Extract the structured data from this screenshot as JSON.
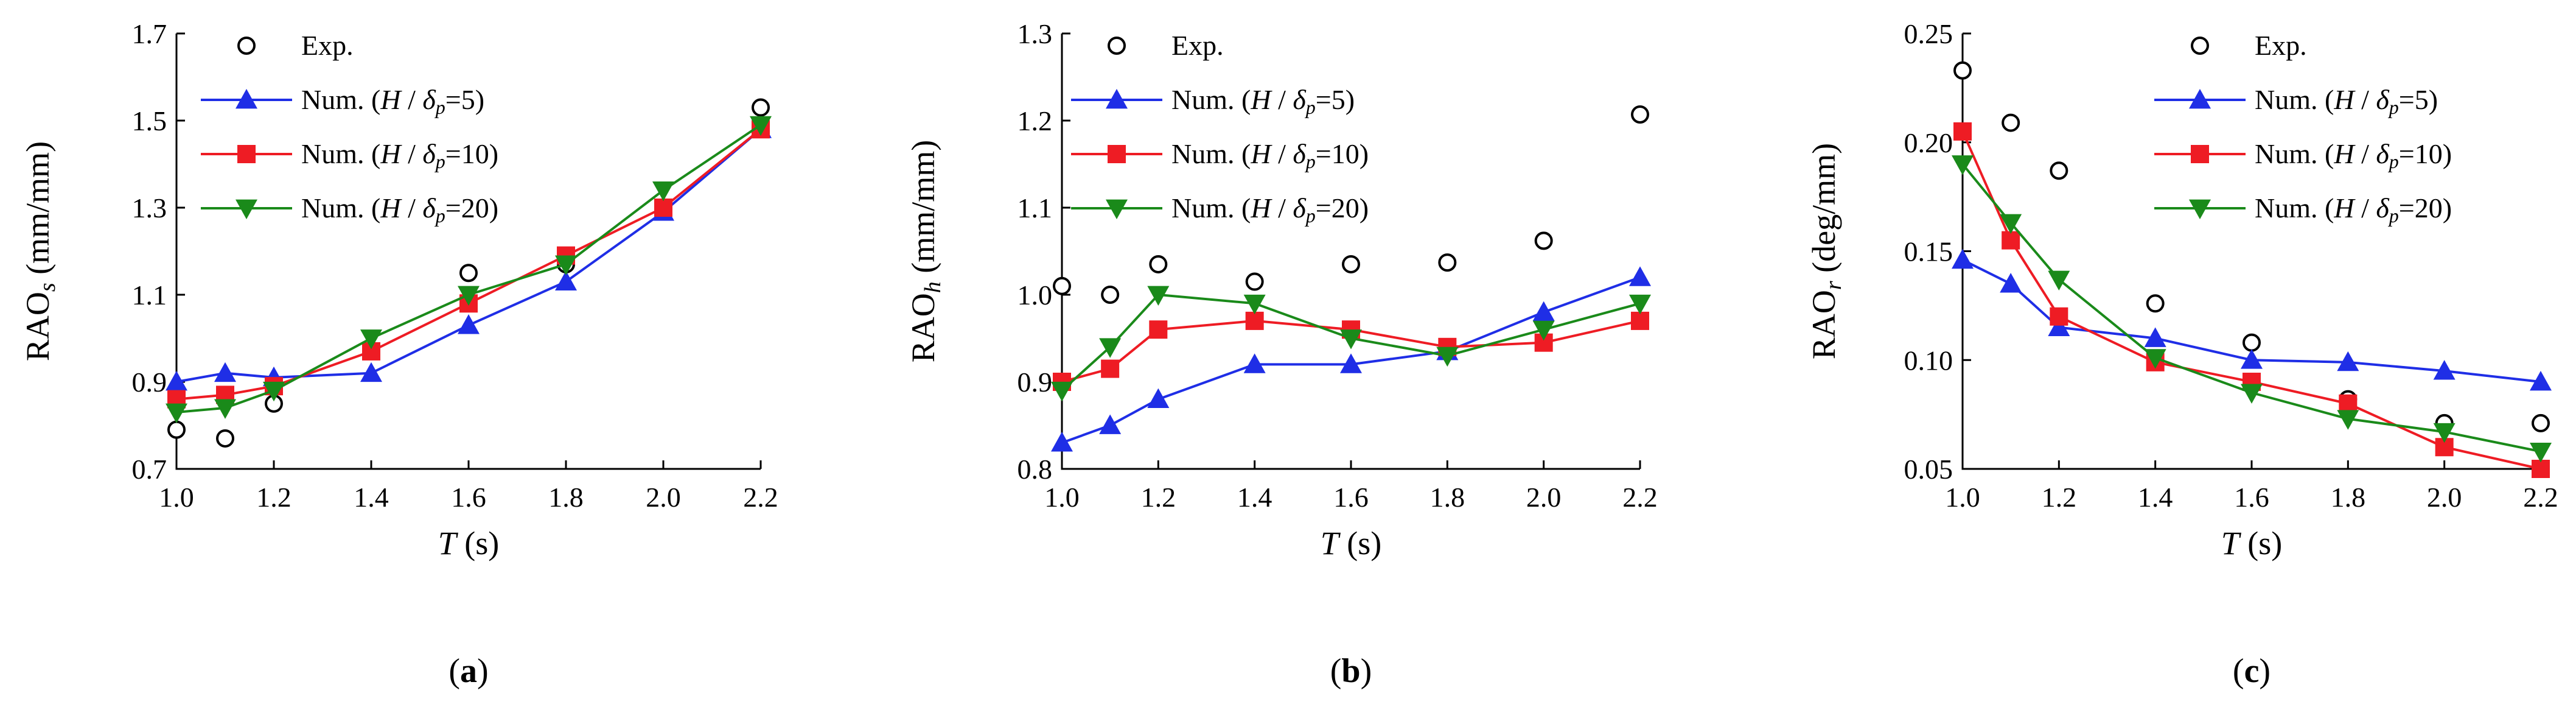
{
  "figure": {
    "panel_labels": [
      "(a)",
      "(b)",
      "(c)"
    ],
    "legend": {
      "exp": "Exp.",
      "num": "Num. (",
      "H": "H",
      "slash": " / ",
      "delta": "δ",
      "p": "p",
      "close": ")",
      "values": [
        "5",
        "10",
        "20"
      ]
    },
    "colors": {
      "blue": "#1f2ee6",
      "red": "#ee1c24",
      "green": "#1a8a1a",
      "exp": "#000000"
    }
  },
  "chart_data": [
    {
      "type": "line",
      "ylabel_main": "RAO",
      "ylabel_sub": "s",
      "ylabel_unit": " (mm/mm)",
      "xlabel_var": "T",
      "xlabel_unit": " (s)",
      "xlim": [
        1.0,
        2.2
      ],
      "ylim": [
        0.7,
        1.7
      ],
      "xticks": [
        "1.0",
        "1.2",
        "1.4",
        "1.6",
        "1.8",
        "2.0",
        "2.2"
      ],
      "yticks": [
        "0.7",
        "0.9",
        "1.1",
        "1.3",
        "1.5",
        "1.7"
      ],
      "series": [
        {
          "name": "Exp.",
          "marker": "circle",
          "x": [
            1.0,
            1.1,
            1.2,
            1.6,
            1.8,
            2.2
          ],
          "values": [
            0.79,
            0.77,
            0.85,
            1.15,
            1.17,
            1.53
          ]
        },
        {
          "name": "Num. (H/δp=5)",
          "marker": "triangle-up",
          "x": [
            1.0,
            1.1,
            1.2,
            1.4,
            1.6,
            1.8,
            2.0,
            2.2
          ],
          "values": [
            0.9,
            0.92,
            0.91,
            0.92,
            1.03,
            1.13,
            1.29,
            1.48
          ]
        },
        {
          "name": "Num. (H/δp=10)",
          "marker": "square",
          "x": [
            1.0,
            1.1,
            1.2,
            1.4,
            1.6,
            1.8,
            2.0,
            2.2
          ],
          "values": [
            0.86,
            0.87,
            0.89,
            0.97,
            1.08,
            1.19,
            1.3,
            1.48
          ]
        },
        {
          "name": "Num. (H/δp=20)",
          "marker": "triangle-down",
          "x": [
            1.0,
            1.1,
            1.2,
            1.4,
            1.6,
            1.8,
            2.0,
            2.2
          ],
          "values": [
            0.83,
            0.84,
            0.88,
            1.0,
            1.1,
            1.17,
            1.34,
            1.49
          ]
        }
      ]
    },
    {
      "type": "line",
      "ylabel_main": "RAO",
      "ylabel_sub": "h",
      "ylabel_unit": " (mm/mm)",
      "xlabel_var": "T",
      "xlabel_unit": " (s)",
      "xlim": [
        1.0,
        2.2
      ],
      "ylim": [
        0.8,
        1.3
      ],
      "xticks": [
        "1.0",
        "1.2",
        "1.4",
        "1.6",
        "1.8",
        "2.0",
        "2.2"
      ],
      "yticks": [
        "0.8",
        "0.9",
        "1.0",
        "1.1",
        "1.2",
        "1.3"
      ],
      "series": [
        {
          "name": "Exp.",
          "marker": "circle",
          "x": [
            1.0,
            1.1,
            1.2,
            1.4,
            1.6,
            1.8,
            2.0,
            2.2
          ],
          "values": [
            1.01,
            1.0,
            1.035,
            1.015,
            1.035,
            1.037,
            1.062,
            1.207
          ]
        },
        {
          "name": "Num. (H/δp=5)",
          "marker": "triangle-up",
          "x": [
            1.0,
            1.1,
            1.2,
            1.4,
            1.6,
            1.8,
            2.0,
            2.2
          ],
          "values": [
            0.83,
            0.85,
            0.88,
            0.92,
            0.92,
            0.935,
            0.98,
            1.02
          ]
        },
        {
          "name": "Num. (H/δp=10)",
          "marker": "square",
          "x": [
            1.0,
            1.1,
            1.2,
            1.4,
            1.6,
            1.8,
            2.0,
            2.2
          ],
          "values": [
            0.9,
            0.915,
            0.96,
            0.97,
            0.96,
            0.94,
            0.945,
            0.97
          ]
        },
        {
          "name": "Num. (H/δp=20)",
          "marker": "triangle-down",
          "x": [
            1.0,
            1.1,
            1.2,
            1.4,
            1.6,
            1.8,
            2.0,
            2.2
          ],
          "values": [
            0.89,
            0.94,
            1.0,
            0.99,
            0.95,
            0.93,
            0.96,
            0.99
          ]
        }
      ]
    },
    {
      "type": "line",
      "ylabel_main": "RAO",
      "ylabel_sub": "r",
      "ylabel_unit": " (deg/mm)",
      "xlabel_var": "T",
      "xlabel_unit": " (s)",
      "xlim": [
        1.0,
        2.2
      ],
      "ylim": [
        0.05,
        0.25
      ],
      "xticks": [
        "1.0",
        "1.2",
        "1.4",
        "1.6",
        "1.8",
        "2.0",
        "2.2"
      ],
      "yticks": [
        "0.05",
        "0.10",
        "0.15",
        "0.20",
        "0.25"
      ],
      "series": [
        {
          "name": "Exp.",
          "marker": "circle",
          "x": [
            1.0,
            1.1,
            1.2,
            1.4,
            1.6,
            1.8,
            2.0,
            2.2
          ],
          "values": [
            0.233,
            0.209,
            0.187,
            0.126,
            0.108,
            0.082,
            0.071,
            0.071
          ]
        },
        {
          "name": "Num. (H/δp=5)",
          "marker": "triangle-up",
          "x": [
            1.0,
            1.1,
            1.2,
            1.4,
            1.6,
            1.8,
            2.0,
            2.2
          ],
          "values": [
            0.146,
            0.135,
            0.115,
            0.11,
            0.1,
            0.099,
            0.095,
            0.09
          ]
        },
        {
          "name": "Num. (H/δp=10)",
          "marker": "square",
          "x": [
            1.0,
            1.1,
            1.2,
            1.4,
            1.6,
            1.8,
            2.0,
            2.2
          ],
          "values": [
            0.205,
            0.155,
            0.12,
            0.099,
            0.09,
            0.08,
            0.06,
            0.05
          ]
        },
        {
          "name": "Num. (H/δp=20)",
          "marker": "triangle-down",
          "x": [
            1.0,
            1.1,
            1.2,
            1.4,
            1.6,
            1.8,
            2.0,
            2.2
          ],
          "values": [
            0.19,
            0.163,
            0.137,
            0.101,
            0.085,
            0.073,
            0.067,
            0.058
          ]
        }
      ]
    }
  ]
}
